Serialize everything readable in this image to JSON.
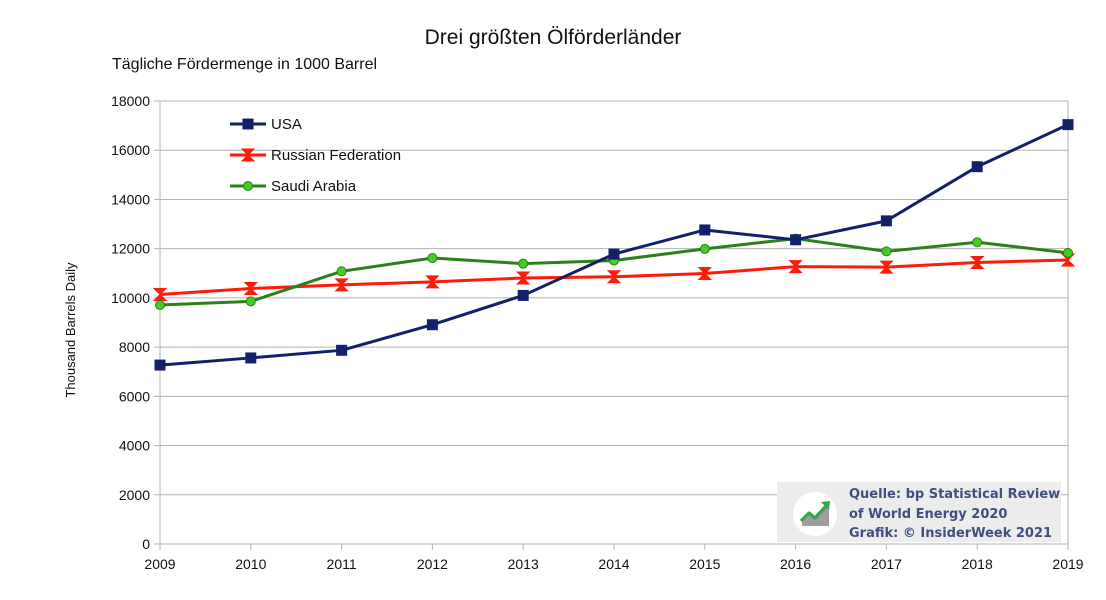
{
  "chart_data": {
    "type": "line",
    "title": "Drei größten Ölförderländer",
    "subtitle": "Tägliche Fördermenge in 1000 Barrel",
    "xlabel": "",
    "ylabel": "Thousand Barrels Daily",
    "x": [
      2009,
      2010,
      2011,
      2012,
      2013,
      2014,
      2015,
      2016,
      2017,
      2018,
      2019
    ],
    "ylim": [
      0,
      18000
    ],
    "yticks": [
      0,
      2000,
      4000,
      6000,
      8000,
      10000,
      12000,
      14000,
      16000,
      18000
    ],
    "grid": true,
    "legend_position": "top-left",
    "series": [
      {
        "name": "USA",
        "color": "#13206a",
        "marker": "square",
        "values": [
          7270,
          7560,
          7870,
          8910,
          10100,
          11780,
          12760,
          12360,
          13130,
          15330,
          17040
        ]
      },
      {
        "name": "Russian Federation",
        "color": "#ff1a0a",
        "marker": "hourglass",
        "values": [
          10140,
          10380,
          10530,
          10650,
          10810,
          10860,
          10990,
          11270,
          11250,
          11440,
          11540
        ]
      },
      {
        "name": "Saudi Arabia",
        "color": "#2e7f1a",
        "marker": "circle",
        "values": [
          9710,
          9860,
          11080,
          11620,
          11390,
          11520,
          11990,
          12410,
          11890,
          12260,
          11830
        ]
      }
    ]
  },
  "source": {
    "line1": "Quelle: bp Statistical Review",
    "line2": "of World Energy 2020",
    "line3": "Grafik: © InsiderWeek 2021",
    "logo_icon": "chart-trend-up-icon"
  }
}
